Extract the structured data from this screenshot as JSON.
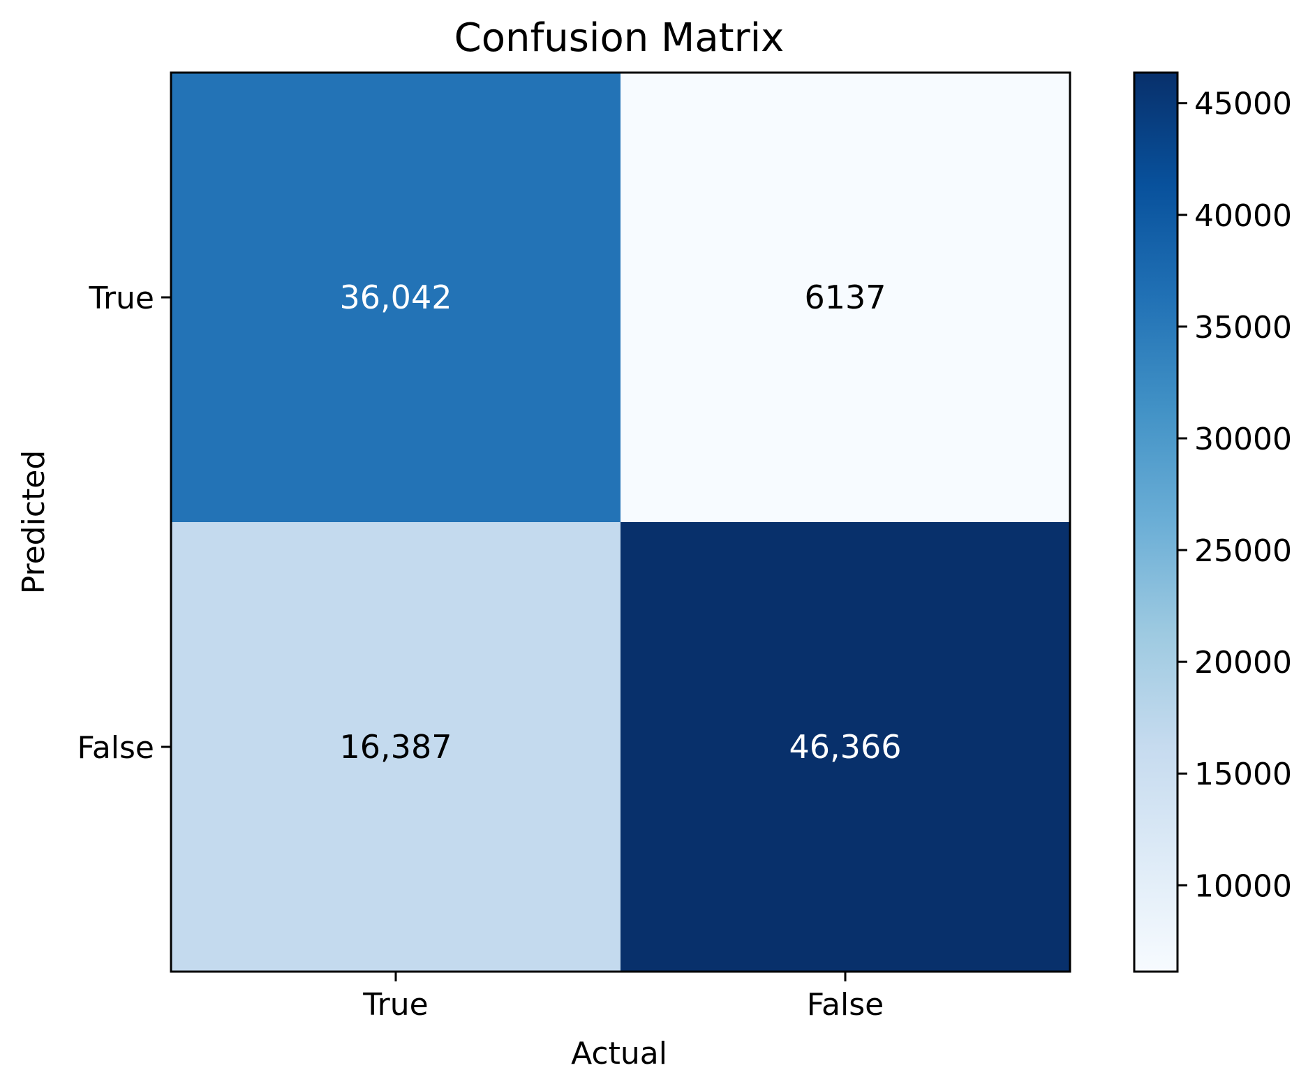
{
  "chart_data": {
    "type": "heatmap",
    "title": "Confusion Matrix",
    "xlabel": "Actual",
    "ylabel": "Predicted",
    "x_categories": [
      "True",
      "False"
    ],
    "y_categories": [
      "True",
      "False"
    ],
    "values": [
      [
        36042,
        6137
      ],
      [
        16387,
        46366
      ]
    ],
    "cell_labels": [
      [
        "36,042",
        "6137"
      ],
      [
        "16,387",
        "46,366"
      ]
    ],
    "colormap": "Blues",
    "colormap_stops": [
      "#f7fbff",
      "#deebf7",
      "#c6dbef",
      "#9ecae1",
      "#6baed6",
      "#4292c6",
      "#2171b5",
      "#08519c",
      "#08306b"
    ],
    "value_range": [
      6137,
      46366
    ],
    "colorbar": {
      "ticks": [
        10000,
        15000,
        20000,
        25000,
        30000,
        35000,
        40000,
        45000
      ],
      "tick_labels": [
        "10000",
        "15000",
        "20000",
        "25000",
        "30000",
        "35000",
        "40000",
        "45000"
      ]
    },
    "text_colors": {
      "dark": "#000000",
      "light": "#ffffff"
    },
    "grid": false
  }
}
